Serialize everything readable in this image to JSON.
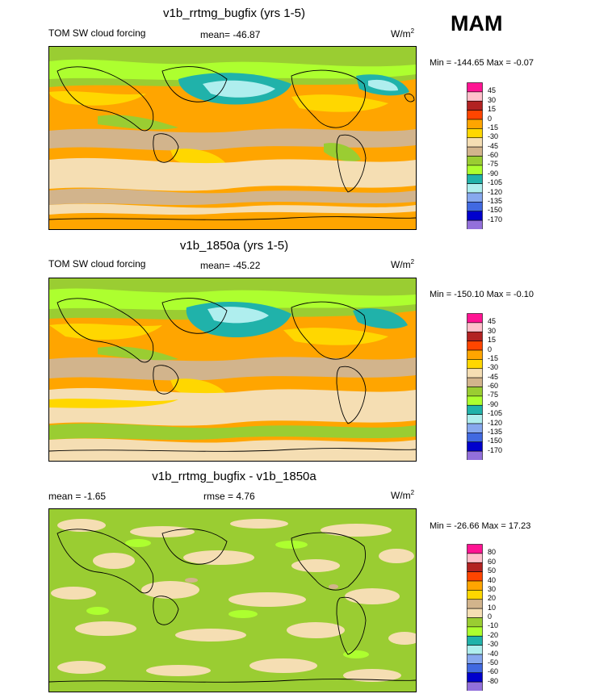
{
  "season_label": "MAM",
  "panels": [
    {
      "title": "v1b_rrtmg_bugfix (yrs 1-5)",
      "left_label": "TOM SW cloud forcing",
      "mean_label": "mean= -46.87",
      "rmse_label": "",
      "units": "W/m",
      "units_sup": "2",
      "minmax": "Min = -144.65 Max =  -0.07",
      "levels": [
        "45",
        "30",
        "15",
        "0",
        "-15",
        "-30",
        "-45",
        "-60",
        "-75",
        "-90",
        "-105",
        "-120",
        "-135",
        "-150",
        "-170"
      ],
      "colors": [
        "#ff1493",
        "#ffc0cb",
        "#b22222",
        "#ff4500",
        "#ffa500",
        "#ffd700",
        "#f5deb3",
        "#d2b48c",
        "#9acd32",
        "#adff2f",
        "#20b2aa",
        "#afeeee",
        "#87a8ee",
        "#4169e1",
        "#0000cd",
        "#9370db"
      ]
    },
    {
      "title": "v1b_1850a (yrs 1-5)",
      "left_label": "TOM SW cloud forcing",
      "mean_label": "mean= -45.22",
      "rmse_label": "",
      "units": "W/m",
      "units_sup": "2",
      "minmax": "Min = -150.10 Max =  -0.10",
      "levels": [
        "45",
        "30",
        "15",
        "0",
        "-15",
        "-30",
        "-45",
        "-60",
        "-75",
        "-90",
        "-105",
        "-120",
        "-135",
        "-150",
        "-170"
      ],
      "colors": [
        "#ff1493",
        "#ffc0cb",
        "#b22222",
        "#ff4500",
        "#ffa500",
        "#ffd700",
        "#f5deb3",
        "#d2b48c",
        "#9acd32",
        "#adff2f",
        "#20b2aa",
        "#afeeee",
        "#87a8ee",
        "#4169e1",
        "#0000cd",
        "#9370db"
      ]
    },
    {
      "title": "v1b_rrtmg_bugfix - v1b_1850a",
      "left_label": "mean =  -1.65",
      "mean_label": "",
      "rmse_label": "rmse =   4.76",
      "units": "W/m",
      "units_sup": "2",
      "minmax": "Min = -26.66 Max =  17.23",
      "levels": [
        "80",
        "60",
        "50",
        "40",
        "30",
        "20",
        "10",
        "0",
        "-10",
        "-20",
        "-30",
        "-40",
        "-50",
        "-60",
        "-80"
      ],
      "colors": [
        "#ff1493",
        "#ffc0cb",
        "#b22222",
        "#ff4500",
        "#ffa500",
        "#ffd700",
        "#d2b48c",
        "#f5deb3",
        "#9acd32",
        "#adff2f",
        "#20b2aa",
        "#afeeee",
        "#87a8ee",
        "#4169e1",
        "#0000cd",
        "#9370db"
      ]
    }
  ],
  "chart_data": [
    {
      "type": "heatmap",
      "title": "v1b_rrtmg_bugfix (yrs 1-5)",
      "variable": "TOM SW cloud forcing",
      "units": "W/m2",
      "mean": -46.87,
      "min": -144.65,
      "max": -0.07,
      "levels": [
        45,
        30,
        15,
        0,
        -15,
        -30,
        -45,
        -60,
        -75,
        -90,
        -105,
        -120,
        -135,
        -150,
        -170
      ]
    },
    {
      "type": "heatmap",
      "title": "v1b_1850a (yrs 1-5)",
      "variable": "TOM SW cloud forcing",
      "units": "W/m2",
      "mean": -45.22,
      "min": -150.1,
      "max": -0.1,
      "levels": [
        45,
        30,
        15,
        0,
        -15,
        -30,
        -45,
        -60,
        -75,
        -90,
        -105,
        -120,
        -135,
        -150,
        -170
      ]
    },
    {
      "type": "heatmap",
      "title": "v1b_rrtmg_bugfix - v1b_1850a",
      "units": "W/m2",
      "mean": -1.65,
      "rmse": 4.76,
      "min": -26.66,
      "max": 17.23,
      "levels": [
        80,
        60,
        50,
        40,
        30,
        20,
        10,
        0,
        -10,
        -20,
        -30,
        -40,
        -50,
        -60,
        -80
      ]
    }
  ]
}
